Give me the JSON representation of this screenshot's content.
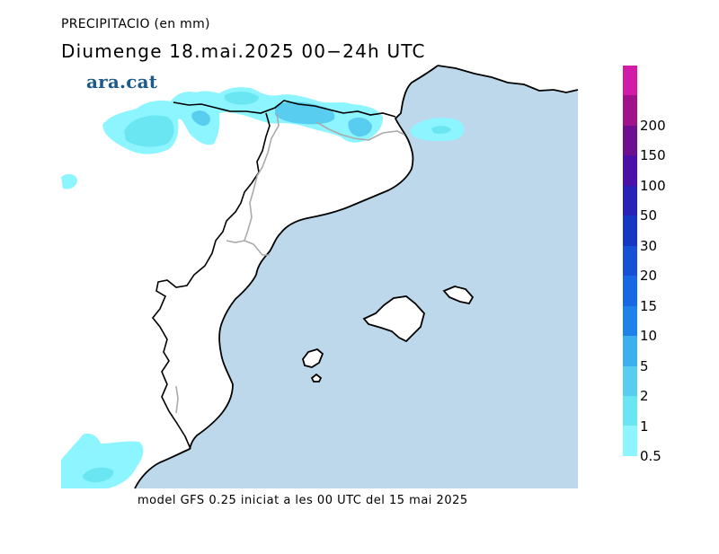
{
  "header": {
    "title": "PRECIPITACIO (en mm)",
    "subtitle": "Diumenge  18.mai.2025 00−24h UTC",
    "brand": "ara.cat"
  },
  "footer": {
    "text": "model GFS 0.25 iniciat a les 00 UTC del 15 mai 2025"
  },
  "colors": {
    "sea": "#bcd8ea",
    "land": "#ffffff",
    "coast": "#000000",
    "border": "#aaaaaa"
  },
  "legend": {
    "levels": [
      {
        "label": "0.5",
        "color": "#8cf5ff"
      },
      {
        "label": "1",
        "color": "#6ae6f2"
      },
      {
        "label": "2",
        "color": "#58cdef"
      },
      {
        "label": "5",
        "color": "#3cb0ee"
      },
      {
        "label": "10",
        "color": "#1e82ea"
      },
      {
        "label": "15",
        "color": "#1669e3"
      },
      {
        "label": "20",
        "color": "#1550d6"
      },
      {
        "label": "30",
        "color": "#1438c4"
      },
      {
        "label": "50",
        "color": "#2a22b8"
      },
      {
        "label": "100",
        "color": "#4a10a8"
      },
      {
        "label": "150",
        "color": "#6e0f8f"
      },
      {
        "label": "200",
        "color": "#a0128a"
      },
      {
        "label": "",
        "color": "#d01ca6"
      }
    ]
  }
}
